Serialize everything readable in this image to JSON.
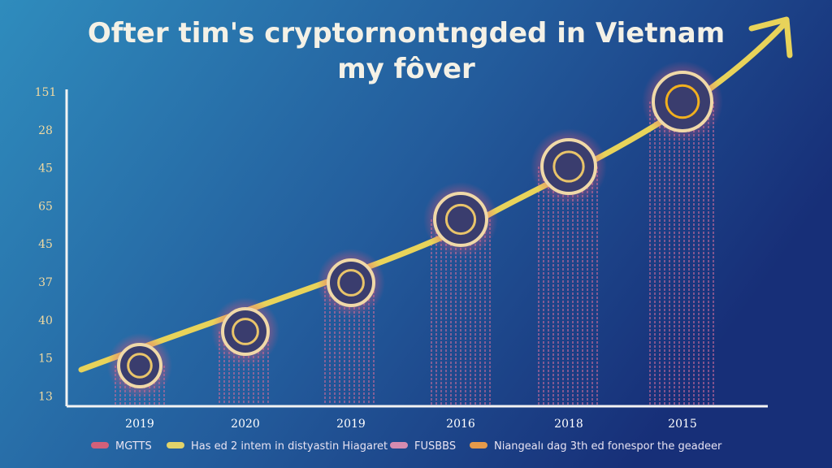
{
  "title": {
    "line1": "Ofter tim's cryptornontngded in Vietnam",
    "line2": "my fôver"
  },
  "y_axis_labels": [
    "151",
    "28",
    "45",
    "65",
    "45",
    "37",
    "40",
    "15",
    "13"
  ],
  "x_axis_labels": [
    "2019",
    "2020",
    "2019",
    "2016",
    "2018",
    "2015"
  ],
  "legend": [
    "MGTTS",
    "Has ed 2 intem in distyastin Hiagaret",
    "FUSBBS",
    "Niangealı dag 3th ed fonespor the geadeer"
  ]
}
